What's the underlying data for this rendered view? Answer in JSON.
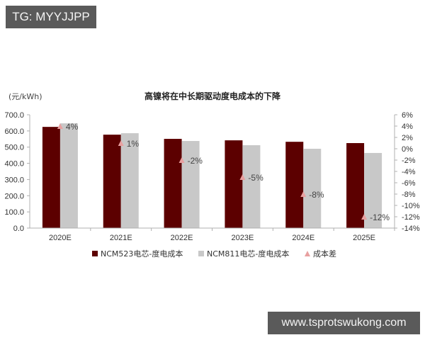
{
  "watermarks": {
    "top_left": "TG: MYYJJPP",
    "bottom_right": "www.tsprotswukong.com"
  },
  "colors": {
    "ncm523": "#5c0000",
    "ncm811": "#c8c8c8",
    "diff_marker": "#e8a0a0",
    "axis": "#b0b0b0",
    "badge_bg": "#5a5a5a"
  },
  "chart_data": {
    "type": "bar",
    "title": "高镍将在中长期驱动度电成本的下降",
    "ylabel": "(元/kWh)",
    "y2label": "",
    "xlabel": "",
    "categories": [
      "2020E",
      "2021E",
      "2022E",
      "2023E",
      "2024E",
      "2025E"
    ],
    "series": [
      {
        "name": "NCM523电芯-度电成本",
        "type": "bar",
        "axis": "left",
        "values": [
          625,
          577,
          551,
          542,
          533,
          525
        ]
      },
      {
        "name": "NCM811电芯-度电成本",
        "type": "bar",
        "axis": "left",
        "values": [
          647,
          586,
          538,
          512,
          490,
          464
        ]
      },
      {
        "name": "成本差",
        "type": "scatter",
        "axis": "right",
        "marker": "triangle",
        "values": [
          4,
          1,
          -2,
          -5,
          -8,
          -12
        ],
        "labels": [
          "4%",
          "1%",
          "-2%",
          "-5%",
          "-8%",
          "-12%"
        ]
      }
    ],
    "ylim": [
      0,
      700
    ],
    "yticks": [
      "700.0",
      "600.0",
      "500.0",
      "400.0",
      "300.0",
      "200.0",
      "100.0",
      "0.0"
    ],
    "y2lim": [
      -14,
      6
    ],
    "y2ticks": [
      "6%",
      "4%",
      "2%",
      "0%",
      "-2%",
      "-4%",
      "-6%",
      "-8%",
      "-10%",
      "-12%",
      "-14%"
    ],
    "grid": false,
    "legend_position": "bottom"
  }
}
